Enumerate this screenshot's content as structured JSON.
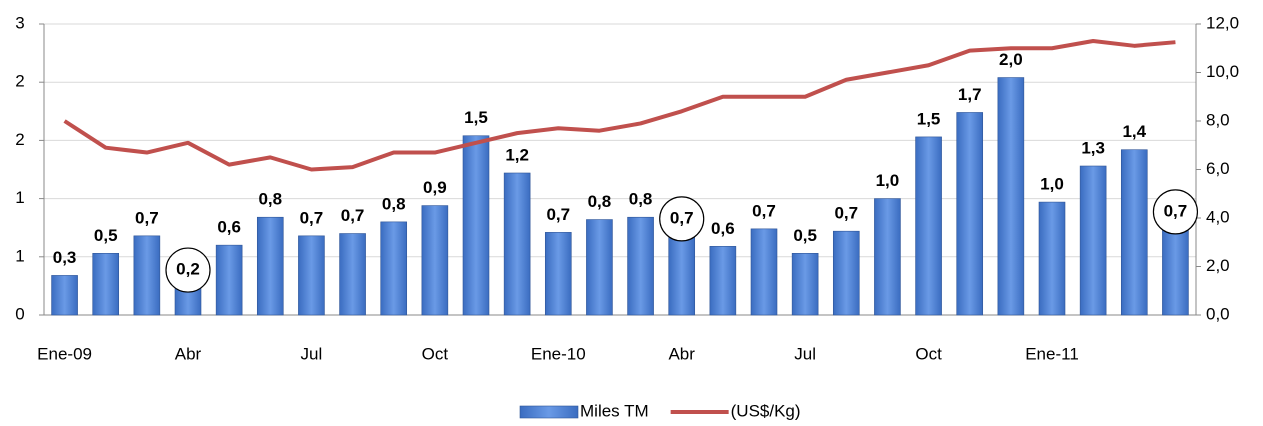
{
  "chart_data": {
    "type": "bar_line",
    "categories": [
      "Ene-09",
      null,
      null,
      "Abr",
      null,
      null,
      "Jul",
      null,
      null,
      "Oct",
      null,
      null,
      "Ene-10",
      null,
      null,
      "Abr",
      null,
      null,
      "Jul",
      null,
      null,
      "Oct",
      null,
      null,
      "Ene-11",
      null,
      null,
      null
    ],
    "series": [
      {
        "name": "Miles TM",
        "type": "bar",
        "color": "#4f81d0",
        "values": [
          0.34,
          0.53,
          0.68,
          0.24,
          0.6,
          0.84,
          0.68,
          0.7,
          0.8,
          0.94,
          1.54,
          1.22,
          0.71,
          0.82,
          0.84,
          0.68,
          0.59,
          0.74,
          0.53,
          0.72,
          1.0,
          1.53,
          1.74,
          2.04,
          0.97,
          1.28,
          1.42,
          0.74
        ],
        "value_labels": [
          "0,3",
          "0,5",
          "0,7",
          "0,2",
          "0,6",
          "0,8",
          "0,7",
          "0,7",
          "0,8",
          "0,9",
          "1,5",
          "1,2",
          "0,7",
          "0,8",
          "0,8",
          "0,7",
          "0,6",
          "0,7",
          "0,5",
          "0,7",
          "1,0",
          "1,5",
          "1,7",
          "2,0",
          "1,0",
          "1,3",
          "1,4",
          "0,7"
        ]
      },
      {
        "name": "(US$/Kg)",
        "type": "line",
        "axis": "y2",
        "color": "#c0504d",
        "values": [
          8.0,
          6.9,
          6.7,
          7.1,
          6.2,
          6.5,
          6.0,
          6.1,
          6.7,
          6.7,
          7.1,
          7.5,
          7.7,
          7.6,
          7.9,
          8.4,
          9.0,
          9.0,
          9.0,
          9.7,
          10.0,
          10.3,
          10.9,
          11.0,
          11.0,
          11.3,
          11.1,
          11.25
        ]
      }
    ],
    "ylim": [
      0,
      2.5
    ],
    "yticks": [
      0,
      {
        "value": 0.5,
        "label": "1"
      },
      1,
      {
        "value": 1.5,
        "label": "2"
      },
      2,
      {
        "value": 2.5,
        "label": "3"
      }
    ],
    "y2lim": [
      0,
      12
    ],
    "y2ticks": [
      {
        "value": 0,
        "label": "0,0"
      },
      {
        "value": 2,
        "label": "2,0"
      },
      {
        "value": 4,
        "label": "4,0"
      },
      {
        "value": 6,
        "label": "6,0"
      },
      {
        "value": 8,
        "label": "8,0"
      },
      {
        "value": 10,
        "label": "10,0"
      },
      {
        "value": 12,
        "label": "12,0"
      }
    ],
    "grid": true,
    "legend": "bottom"
  }
}
